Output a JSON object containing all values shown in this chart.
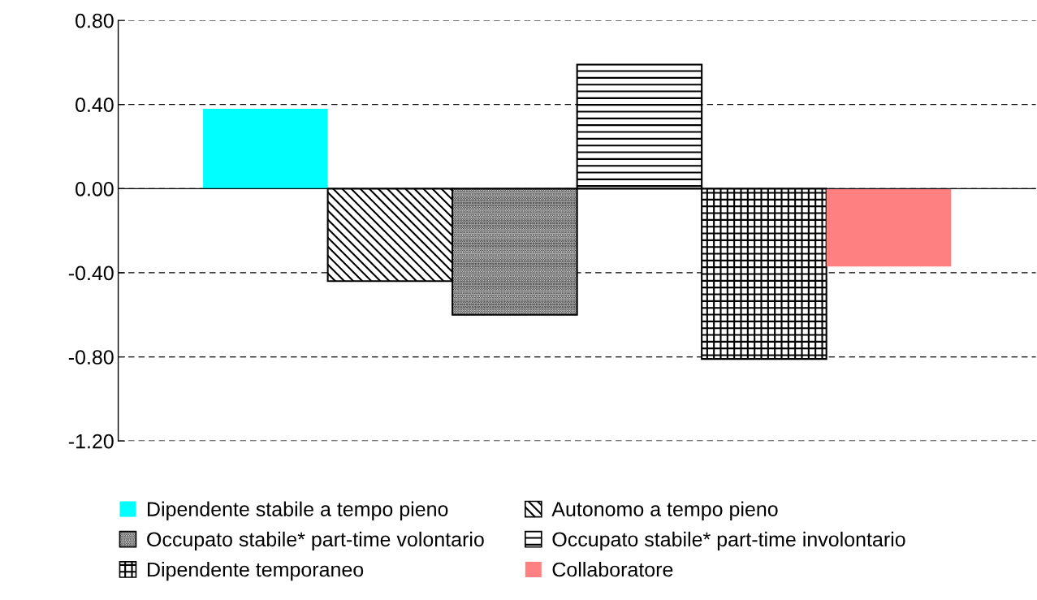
{
  "chart_data": {
    "type": "bar",
    "categories": [
      null
    ],
    "series": [
      {
        "name": "Dipendente stabile a tempo pieno",
        "color": "#00ffff",
        "values": [
          0.38
        ]
      },
      {
        "name": "Autonomo a tempo pieno",
        "color": "#000000",
        "values": [
          -0.44
        ]
      },
      {
        "name": "Occupato stabile* part-time volontario",
        "color": "#000000",
        "values": [
          -0.6
        ]
      },
      {
        "name": "Occupato stabile* part-time involontario",
        "color": "#000000",
        "values": [
          0.59
        ]
      },
      {
        "name": "Dipendente temporaneo",
        "color": "#000000",
        "values": [
          -0.81
        ]
      },
      {
        "name": "Collaboratore",
        "color": "#ff8080",
        "values": [
          -0.37
        ]
      }
    ],
    "ylim": [
      -1.2,
      0.8
    ],
    "yticks": [
      {
        "value": -1.2,
        "label": "-1.20"
      },
      {
        "value": -0.8,
        "label": "-0.80"
      },
      {
        "value": -0.4,
        "label": "-0.40"
      },
      {
        "value": 0,
        "label": "0.00"
      },
      {
        "value": 0.4,
        "label": "0.40"
      },
      {
        "value": 0.8,
        "label": "0.80"
      }
    ],
    "grid": "y",
    "legend": "bottom"
  }
}
